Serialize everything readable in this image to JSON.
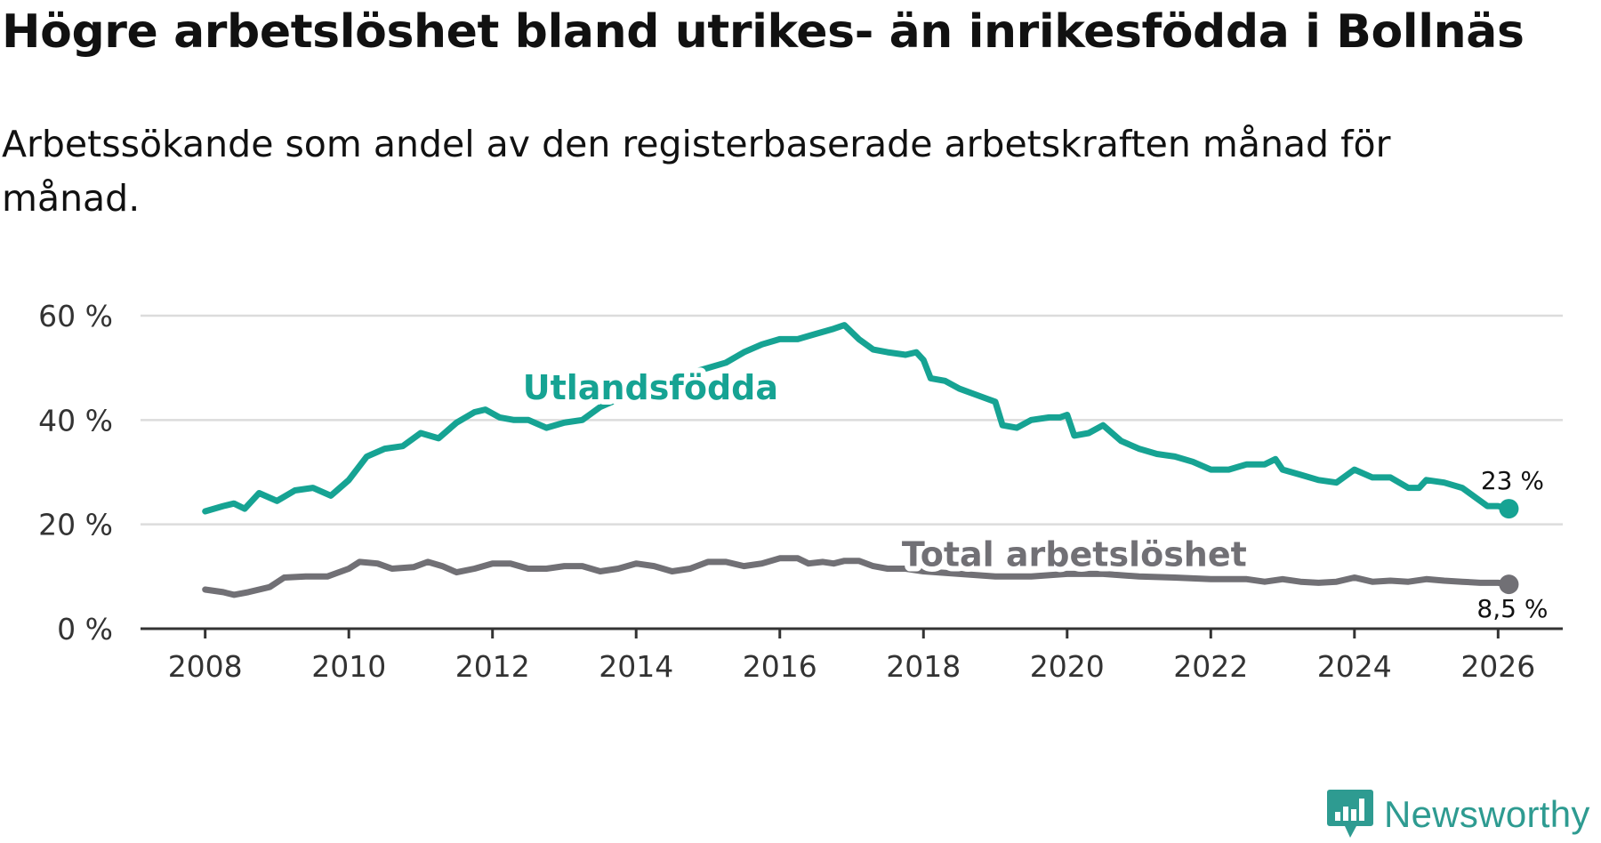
{
  "header": {
    "title": "Högre arbetslöshet bland utrikes- än inrikesfödda i Bollnäs",
    "subtitle": "Arbetssökande som andel av den registerbaserade arbetskraften månad för månad."
  },
  "brand": {
    "name": "Newsworthy",
    "color": "#2e9b91",
    "icon": "bar-chart-speech-bubble-icon"
  },
  "chart_data": {
    "type": "line",
    "title": "Högre arbetslöshet bland utrikes- än inrikesfödda i Bollnäs",
    "subtitle": "Arbetssökande som andel av den registerbaserade arbetskraften månad för månad.",
    "xlabel": "",
    "ylabel": "",
    "xlim": [
      2007.1,
      2026.9
    ],
    "ylim": [
      0,
      60
    ],
    "x_ticks": [
      2008,
      2010,
      2012,
      2014,
      2016,
      2018,
      2020,
      2022,
      2024,
      2026
    ],
    "x_tick_labels": [
      "2008",
      "2010",
      "2012",
      "2014",
      "2016",
      "2018",
      "2020",
      "2022",
      "2024",
      "2026"
    ],
    "y_ticks": [
      0,
      20,
      40,
      60
    ],
    "y_tick_labels": [
      "0 %",
      "20 %",
      "40 %",
      "60 %"
    ],
    "grid": "horizontal",
    "series": [
      {
        "name": "Utlandsfödda",
        "color": "#16a393",
        "end_label": "23 %",
        "points": [
          [
            2008.0,
            22.5
          ],
          [
            2008.25,
            23.5
          ],
          [
            2008.4,
            24.0
          ],
          [
            2008.55,
            23.0
          ],
          [
            2008.75,
            26.0
          ],
          [
            2009.0,
            24.5
          ],
          [
            2009.25,
            26.5
          ],
          [
            2009.5,
            27.0
          ],
          [
            2009.75,
            25.5
          ],
          [
            2010.0,
            28.5
          ],
          [
            2010.25,
            33.0
          ],
          [
            2010.5,
            34.5
          ],
          [
            2010.75,
            35.0
          ],
          [
            2011.0,
            37.5
          ],
          [
            2011.25,
            36.5
          ],
          [
            2011.5,
            39.5
          ],
          [
            2011.75,
            41.5
          ],
          [
            2011.9,
            42.0
          ],
          [
            2012.1,
            40.5
          ],
          [
            2012.3,
            40.0
          ],
          [
            2012.5,
            40.0
          ],
          [
            2012.75,
            38.5
          ],
          [
            2013.0,
            39.5
          ],
          [
            2013.25,
            40.0
          ],
          [
            2013.5,
            42.5
          ],
          [
            2013.75,
            44.0
          ],
          [
            2014.0,
            46.0
          ],
          [
            2014.25,
            47.0
          ],
          [
            2014.5,
            48.0
          ],
          [
            2014.75,
            49.0
          ],
          [
            2015.0,
            50.0
          ],
          [
            2015.25,
            51.0
          ],
          [
            2015.5,
            53.0
          ],
          [
            2015.75,
            54.5
          ],
          [
            2016.0,
            55.5
          ],
          [
            2016.25,
            55.5
          ],
          [
            2016.5,
            56.5
          ],
          [
            2016.75,
            57.5
          ],
          [
            2016.9,
            58.2
          ],
          [
            2017.1,
            55.5
          ],
          [
            2017.3,
            53.5
          ],
          [
            2017.5,
            53.0
          ],
          [
            2017.75,
            52.5
          ],
          [
            2017.9,
            53.0
          ],
          [
            2018.0,
            51.5
          ],
          [
            2018.1,
            48.0
          ],
          [
            2018.3,
            47.5
          ],
          [
            2018.5,
            46.0
          ],
          [
            2018.7,
            45.0
          ],
          [
            2018.9,
            44.0
          ],
          [
            2019.0,
            43.5
          ],
          [
            2019.1,
            39.0
          ],
          [
            2019.3,
            38.5
          ],
          [
            2019.5,
            40.0
          ],
          [
            2019.75,
            40.5
          ],
          [
            2019.9,
            40.5
          ],
          [
            2020.0,
            41.0
          ],
          [
            2020.1,
            37.0
          ],
          [
            2020.3,
            37.5
          ],
          [
            2020.5,
            39.0
          ],
          [
            2020.75,
            36.0
          ],
          [
            2021.0,
            34.5
          ],
          [
            2021.25,
            33.5
          ],
          [
            2021.5,
            33.0
          ],
          [
            2021.75,
            32.0
          ],
          [
            2022.0,
            30.5
          ],
          [
            2022.25,
            30.5
          ],
          [
            2022.5,
            31.5
          ],
          [
            2022.75,
            31.5
          ],
          [
            2022.9,
            32.5
          ],
          [
            2023.0,
            30.5
          ],
          [
            2023.25,
            29.5
          ],
          [
            2023.5,
            28.5
          ],
          [
            2023.75,
            28.0
          ],
          [
            2024.0,
            30.5
          ],
          [
            2024.25,
            29.0
          ],
          [
            2024.5,
            29.0
          ],
          [
            2024.75,
            27.0
          ],
          [
            2024.9,
            27.0
          ],
          [
            2025.0,
            28.5
          ],
          [
            2025.25,
            28.0
          ],
          [
            2025.5,
            27.0
          ],
          [
            2025.7,
            25.0
          ],
          [
            2025.85,
            23.5
          ],
          [
            2026.0,
            23.5
          ],
          [
            2026.15,
            23.0
          ]
        ]
      },
      {
        "name": "Total arbetslöshet",
        "color": "#717075",
        "end_label": "8,5 %",
        "points": [
          [
            2008.0,
            7.5
          ],
          [
            2008.25,
            7.0
          ],
          [
            2008.4,
            6.5
          ],
          [
            2008.6,
            7.0
          ],
          [
            2008.9,
            8.0
          ],
          [
            2009.1,
            9.8
          ],
          [
            2009.4,
            10.0
          ],
          [
            2009.7,
            10.0
          ],
          [
            2010.0,
            11.5
          ],
          [
            2010.15,
            12.8
          ],
          [
            2010.4,
            12.5
          ],
          [
            2010.6,
            11.5
          ],
          [
            2010.9,
            11.8
          ],
          [
            2011.1,
            12.8
          ],
          [
            2011.3,
            12.0
          ],
          [
            2011.5,
            10.8
          ],
          [
            2011.75,
            11.5
          ],
          [
            2012.0,
            12.5
          ],
          [
            2012.25,
            12.5
          ],
          [
            2012.5,
            11.5
          ],
          [
            2012.75,
            11.5
          ],
          [
            2013.0,
            12.0
          ],
          [
            2013.25,
            12.0
          ],
          [
            2013.5,
            11.0
          ],
          [
            2013.75,
            11.5
          ],
          [
            2014.0,
            12.5
          ],
          [
            2014.25,
            12.0
          ],
          [
            2014.5,
            11.0
          ],
          [
            2014.75,
            11.5
          ],
          [
            2015.0,
            12.8
          ],
          [
            2015.25,
            12.8
          ],
          [
            2015.5,
            12.0
          ],
          [
            2015.75,
            12.5
          ],
          [
            2016.0,
            13.5
          ],
          [
            2016.25,
            13.5
          ],
          [
            2016.4,
            12.5
          ],
          [
            2016.6,
            12.8
          ],
          [
            2016.75,
            12.5
          ],
          [
            2016.9,
            13.0
          ],
          [
            2017.1,
            13.0
          ],
          [
            2017.3,
            12.0
          ],
          [
            2017.5,
            11.5
          ],
          [
            2017.75,
            11.5
          ],
          [
            2018.0,
            11.0
          ],
          [
            2018.5,
            10.5
          ],
          [
            2019.0,
            10.0
          ],
          [
            2019.5,
            10.0
          ],
          [
            2020.0,
            10.5
          ],
          [
            2020.5,
            10.5
          ],
          [
            2021.0,
            10.0
          ],
          [
            2021.5,
            9.8
          ],
          [
            2022.0,
            9.5
          ],
          [
            2022.5,
            9.5
          ],
          [
            2022.75,
            9.0
          ],
          [
            2023.0,
            9.5
          ],
          [
            2023.25,
            9.0
          ],
          [
            2023.5,
            8.8
          ],
          [
            2023.75,
            9.0
          ],
          [
            2024.0,
            9.8
          ],
          [
            2024.25,
            9.0
          ],
          [
            2024.5,
            9.2
          ],
          [
            2024.75,
            9.0
          ],
          [
            2025.0,
            9.5
          ],
          [
            2025.25,
            9.2
          ],
          [
            2025.5,
            9.0
          ],
          [
            2025.75,
            8.8
          ],
          [
            2026.0,
            8.8
          ],
          [
            2026.15,
            8.5
          ]
        ]
      }
    ],
    "annotations": [
      {
        "text": "Utlandsfödda",
        "series": 0,
        "x": 2014.2,
        "y": 44.0
      },
      {
        "text": "Total arbetslöshet",
        "series": 1,
        "x": 2020.1,
        "y": 12.0
      }
    ]
  }
}
